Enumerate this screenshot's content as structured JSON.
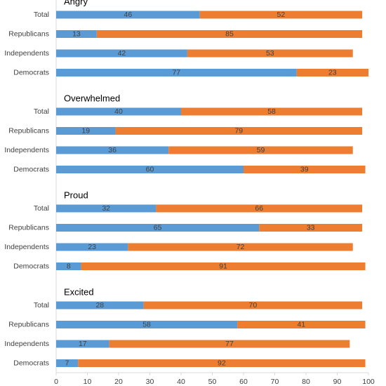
{
  "chart_data": {
    "type": "stacked-bar",
    "orientation": "horizontal",
    "xlim": [
      0,
      100
    ],
    "xticks": [
      0,
      10,
      20,
      30,
      40,
      50,
      60,
      70,
      80,
      90,
      100
    ],
    "panels": [
      {
        "title": "Angry",
        "categories": [
          "Total",
          "Republicans",
          "Independents",
          "Democrats"
        ],
        "series": [
          {
            "color": "#5b9bd5",
            "values": [
              46,
              13,
              42,
              77
            ]
          },
          {
            "color": "#ed7d31",
            "values": [
              52,
              85,
              53,
              23
            ]
          }
        ]
      },
      {
        "title": "Overwhelmed",
        "categories": [
          "Total",
          "Republicans",
          "Independents",
          "Democrats"
        ],
        "series": [
          {
            "color": "#5b9bd5",
            "values": [
              40,
              19,
              36,
              60
            ]
          },
          {
            "color": "#ed7d31",
            "values": [
              58,
              79,
              59,
              39
            ]
          }
        ]
      },
      {
        "title": "Proud",
        "categories": [
          "Total",
          "Republicans",
          "Independents",
          "Democrats"
        ],
        "series": [
          {
            "color": "#5b9bd5",
            "values": [
              32,
              65,
              23,
              8
            ]
          },
          {
            "color": "#ed7d31",
            "values": [
              66,
              33,
              72,
              91
            ]
          }
        ]
      },
      {
        "title": "Excited",
        "categories": [
          "Total",
          "Republicans",
          "Independents",
          "Democrats"
        ],
        "series": [
          {
            "color": "#5b9bd5",
            "values": [
              28,
              58,
              17,
              7
            ]
          },
          {
            "color": "#ed7d31",
            "values": [
              70,
              41,
              77,
              92
            ]
          }
        ]
      }
    ]
  }
}
